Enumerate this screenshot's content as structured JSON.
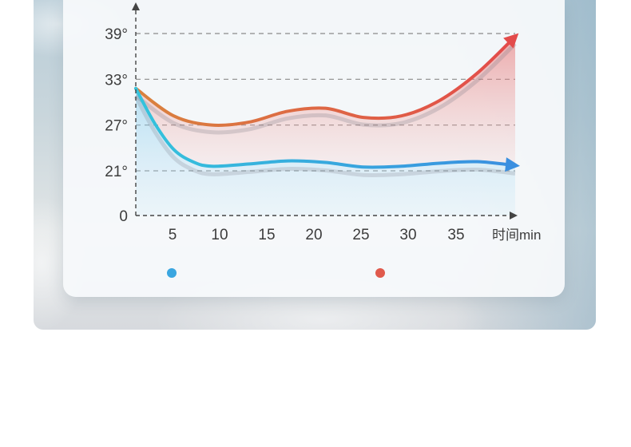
{
  "chart_data": {
    "type": "line",
    "x_unit": "时间min",
    "x_ticks": [
      5,
      10,
      15,
      20,
      25,
      30,
      35
    ],
    "y_ticks": [
      0,
      21,
      27,
      33,
      39
    ],
    "y_tick_labels": [
      "0",
      "21°",
      "27°",
      "33°",
      "39°"
    ],
    "xlim": [
      0,
      40
    ],
    "grid_y": true,
    "series": [
      {
        "color": "#e05a4c",
        "x": [
          0,
          4,
          8,
          12,
          16,
          20,
          24,
          28,
          32,
          36,
          40
        ],
        "y": [
          31.8,
          28.2,
          27.0,
          27.4,
          28.8,
          29.2,
          28.0,
          28.2,
          30.2,
          33.8,
          38.6
        ]
      },
      {
        "color": "#3aa6e0",
        "x": [
          0,
          2,
          4,
          6,
          8,
          12,
          16,
          20,
          24,
          28,
          32,
          36,
          40
        ],
        "y": [
          31.8,
          27.2,
          23.8,
          22.2,
          21.6,
          21.9,
          22.3,
          22.1,
          21.5,
          21.6,
          22.0,
          22.2,
          21.7
        ]
      }
    ]
  },
  "legend": [
    {
      "color": "#3aa6e0"
    },
    {
      "color": "#e05a4c"
    }
  ]
}
